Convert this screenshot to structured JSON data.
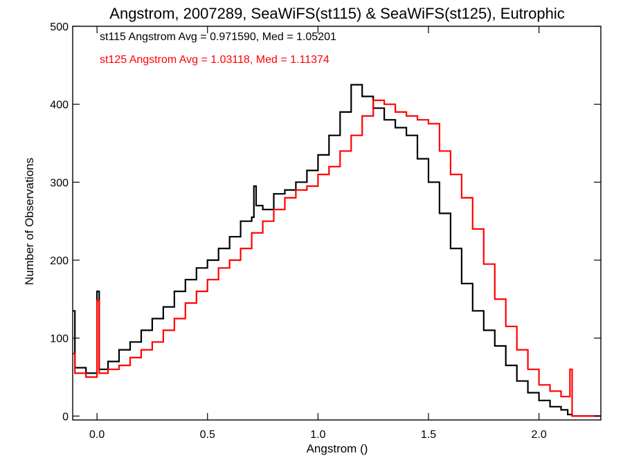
{
  "chart_data": {
    "type": "line",
    "title": "Angstrom, 2007289, SeaWiFS(st115) & SeaWiFS(st125), Eutrophic",
    "xlabel": "Angstrom ()",
    "ylabel": "Number of Observations",
    "xlim": [
      -0.11,
      2.28
    ],
    "ylim": [
      -5,
      500
    ],
    "x_ticks": [
      0.0,
      0.5,
      1.0,
      1.5,
      2.0
    ],
    "x_tick_labels": [
      "0.0",
      "0.5",
      "1.0",
      "1.5",
      "2.0"
    ],
    "y_ticks": [
      0,
      100,
      200,
      300,
      400,
      500
    ],
    "y_tick_labels": [
      "0",
      "100",
      "200",
      "300",
      "400",
      "500"
    ],
    "grid": false,
    "step_style": "histogram",
    "annotations": [
      {
        "text": "st115 Angstrom Avg = 0.971590, Med = 1.05201",
        "color": "#000000"
      },
      {
        "text": "st125 Angstrom Avg = 1.03118, Med = 1.11374",
        "color": "#ff0000"
      }
    ],
    "series": [
      {
        "color": "#000000",
        "x": [
          -0.11,
          -0.1,
          -0.05,
          0.0,
          0.01,
          0.05,
          0.1,
          0.15,
          0.2,
          0.25,
          0.3,
          0.35,
          0.4,
          0.45,
          0.5,
          0.55,
          0.6,
          0.65,
          0.7,
          0.71,
          0.72,
          0.75,
          0.8,
          0.85,
          0.9,
          0.95,
          1.0,
          1.05,
          1.1,
          1.15,
          1.2,
          1.25,
          1.3,
          1.35,
          1.4,
          1.45,
          1.5,
          1.55,
          1.6,
          1.65,
          1.7,
          1.75,
          1.8,
          1.85,
          1.9,
          1.95,
          2.0,
          2.05,
          2.1,
          2.13,
          2.15,
          2.2,
          2.28
        ],
        "y": [
          135,
          62,
          55,
          160,
          60,
          70,
          85,
          95,
          110,
          125,
          140,
          160,
          175,
          190,
          200,
          215,
          230,
          250,
          255,
          295,
          270,
          265,
          285,
          290,
          300,
          315,
          335,
          360,
          390,
          425,
          410,
          395,
          380,
          370,
          360,
          330,
          300,
          260,
          215,
          170,
          135,
          110,
          90,
          65,
          45,
          30,
          20,
          12,
          8,
          2,
          0,
          0,
          0
        ]
      },
      {
        "color": "#ff0000",
        "x": [
          -0.11,
          -0.1,
          -0.05,
          0.0,
          0.01,
          0.05,
          0.1,
          0.15,
          0.2,
          0.25,
          0.3,
          0.35,
          0.4,
          0.45,
          0.5,
          0.55,
          0.6,
          0.65,
          0.7,
          0.75,
          0.8,
          0.85,
          0.9,
          0.95,
          1.0,
          1.05,
          1.1,
          1.15,
          1.2,
          1.25,
          1.3,
          1.35,
          1.4,
          1.45,
          1.5,
          1.55,
          1.6,
          1.65,
          1.7,
          1.75,
          1.8,
          1.85,
          1.9,
          1.95,
          2.0,
          2.05,
          2.1,
          2.14,
          2.15,
          2.2,
          2.28
        ],
        "y": [
          80,
          55,
          50,
          148,
          55,
          60,
          65,
          75,
          85,
          95,
          110,
          125,
          145,
          160,
          175,
          190,
          200,
          215,
          235,
          250,
          265,
          280,
          290,
          295,
          310,
          320,
          340,
          360,
          385,
          405,
          400,
          390,
          385,
          380,
          375,
          340,
          310,
          280,
          240,
          195,
          150,
          115,
          85,
          60,
          40,
          32,
          25,
          60,
          0,
          0,
          0
        ]
      }
    ]
  }
}
